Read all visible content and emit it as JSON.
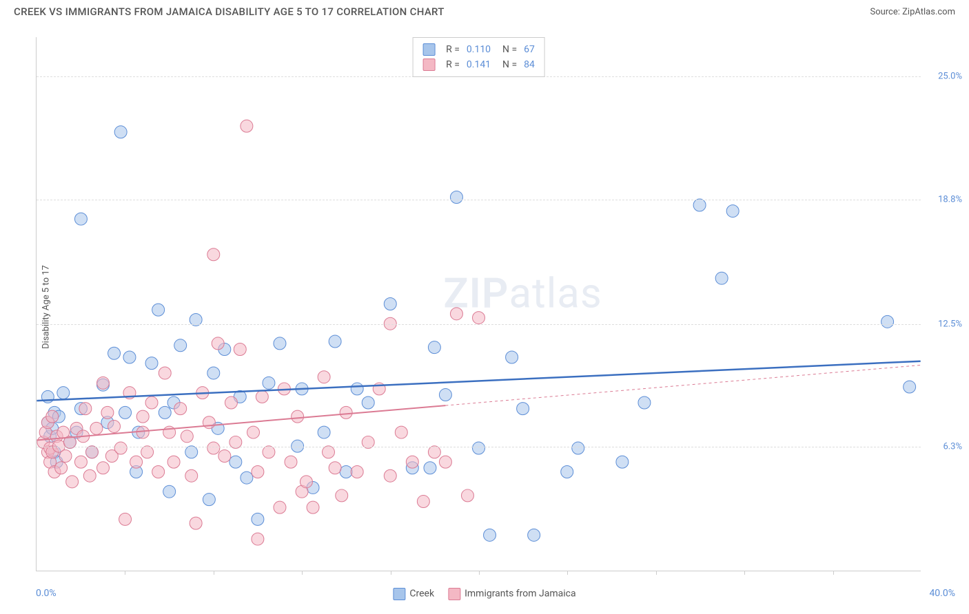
{
  "header": {
    "title": "CREEK VS IMMIGRANTS FROM JAMAICA DISABILITY AGE 5 TO 17 CORRELATION CHART",
    "source": "Source: ZipAtlas.com"
  },
  "chart": {
    "type": "scatter",
    "ylabel": "Disability Age 5 to 17",
    "background_color": "#ffffff",
    "grid_color": "#dddddd",
    "axis_color": "#cccccc",
    "xlim": [
      0,
      40
    ],
    "ylim": [
      0,
      27
    ],
    "yticks": [
      {
        "pos": 6.3,
        "label": "6.3%"
      },
      {
        "pos": 12.5,
        "label": "12.5%"
      },
      {
        "pos": 18.8,
        "label": "18.8%"
      },
      {
        "pos": 25.0,
        "label": "25.0%"
      }
    ],
    "xticks_pos": [
      4,
      8,
      12,
      16,
      20,
      24,
      28,
      32,
      36
    ],
    "xaxis_min_label": "0.0%",
    "xaxis_max_label": "40.0%",
    "watermark": {
      "prefix": "ZIP",
      "suffix": "atlas"
    },
    "marker_radius": 9,
    "marker_opacity": 0.55,
    "series": [
      {
        "name": "Creek",
        "fill": "#a7c5eb",
        "stroke": "#5b8dd6",
        "R": "0.110",
        "N": "67",
        "trend": {
          "x1": 0,
          "y1": 8.6,
          "x2": 40,
          "y2": 10.6,
          "solid_until": 40,
          "color": "#3b6fc0",
          "width": 2.5
        },
        "points": [
          [
            0.5,
            8.8
          ],
          [
            0.5,
            7.5
          ],
          [
            0.6,
            6.8
          ],
          [
            0.7,
            7.2
          ],
          [
            0.8,
            6.0
          ],
          [
            0.8,
            8.0
          ],
          [
            0.9,
            5.5
          ],
          [
            1.0,
            7.8
          ],
          [
            1.2,
            9.0
          ],
          [
            1.5,
            6.5
          ],
          [
            1.8,
            7.0
          ],
          [
            2.0,
            17.8
          ],
          [
            2.0,
            8.2
          ],
          [
            2.5,
            6.0
          ],
          [
            3.0,
            9.4
          ],
          [
            3.2,
            7.5
          ],
          [
            3.5,
            11.0
          ],
          [
            3.8,
            22.2
          ],
          [
            4.0,
            8.0
          ],
          [
            4.2,
            10.8
          ],
          [
            4.5,
            5.0
          ],
          [
            4.6,
            7.0
          ],
          [
            5.2,
            10.5
          ],
          [
            5.5,
            13.2
          ],
          [
            5.8,
            8.0
          ],
          [
            6.0,
            4.0
          ],
          [
            6.2,
            8.5
          ],
          [
            6.5,
            11.4
          ],
          [
            7.0,
            6.0
          ],
          [
            7.2,
            12.7
          ],
          [
            7.8,
            3.6
          ],
          [
            8.0,
            10.0
          ],
          [
            8.2,
            7.2
          ],
          [
            8.5,
            11.2
          ],
          [
            9.0,
            5.5
          ],
          [
            9.2,
            8.8
          ],
          [
            9.5,
            4.7
          ],
          [
            10.0,
            2.6
          ],
          [
            10.5,
            9.5
          ],
          [
            11.0,
            11.5
          ],
          [
            11.8,
            6.3
          ],
          [
            12.0,
            9.2
          ],
          [
            12.5,
            4.2
          ],
          [
            13.0,
            7.0
          ],
          [
            13.5,
            11.6
          ],
          [
            14.0,
            5.0
          ],
          [
            14.5,
            9.2
          ],
          [
            15.0,
            8.5
          ],
          [
            16.0,
            13.5
          ],
          [
            17.0,
            5.2
          ],
          [
            17.8,
            5.2
          ],
          [
            18.0,
            11.3
          ],
          [
            18.5,
            8.9
          ],
          [
            19.0,
            18.9
          ],
          [
            20.0,
            6.2
          ],
          [
            20.5,
            1.8
          ],
          [
            21.5,
            10.8
          ],
          [
            22.0,
            8.2
          ],
          [
            22.5,
            1.8
          ],
          [
            24.0,
            5.0
          ],
          [
            24.5,
            6.2
          ],
          [
            26.5,
            5.5
          ],
          [
            27.5,
            8.5
          ],
          [
            30.0,
            18.5
          ],
          [
            31.0,
            14.8
          ],
          [
            31.5,
            18.2
          ],
          [
            38.5,
            12.6
          ],
          [
            39.5,
            9.3
          ]
        ]
      },
      {
        "name": "Immigrants from Jamaica",
        "fill": "#f4b8c4",
        "stroke": "#db7a93",
        "R": "0.141",
        "N": "84",
        "trend": {
          "x1": 0,
          "y1": 6.6,
          "x2": 40,
          "y2": 10.4,
          "solid_until": 18.5,
          "color": "#db7a93",
          "width": 2
        },
        "points": [
          [
            0.3,
            6.5
          ],
          [
            0.4,
            7.0
          ],
          [
            0.5,
            6.0
          ],
          [
            0.5,
            7.5
          ],
          [
            0.6,
            6.2
          ],
          [
            0.6,
            5.5
          ],
          [
            0.7,
            7.8
          ],
          [
            0.7,
            6.0
          ],
          [
            0.8,
            5.0
          ],
          [
            0.9,
            6.8
          ],
          [
            1.0,
            6.3
          ],
          [
            1.1,
            5.2
          ],
          [
            1.2,
            7.0
          ],
          [
            1.3,
            5.8
          ],
          [
            1.5,
            6.5
          ],
          [
            1.6,
            4.5
          ],
          [
            1.8,
            7.2
          ],
          [
            2.0,
            5.5
          ],
          [
            2.1,
            6.8
          ],
          [
            2.2,
            8.2
          ],
          [
            2.4,
            4.8
          ],
          [
            2.5,
            6.0
          ],
          [
            2.7,
            7.2
          ],
          [
            3.0,
            5.2
          ],
          [
            3.0,
            9.5
          ],
          [
            3.2,
            8.0
          ],
          [
            3.4,
            5.8
          ],
          [
            3.5,
            7.3
          ],
          [
            3.8,
            6.2
          ],
          [
            4.0,
            2.6
          ],
          [
            4.2,
            9.0
          ],
          [
            4.5,
            5.5
          ],
          [
            4.8,
            7.8
          ],
          [
            4.8,
            7.0
          ],
          [
            5.0,
            6.0
          ],
          [
            5.2,
            8.5
          ],
          [
            5.5,
            5.0
          ],
          [
            5.8,
            10.0
          ],
          [
            6.0,
            7.0
          ],
          [
            6.2,
            5.5
          ],
          [
            6.5,
            8.2
          ],
          [
            6.8,
            6.8
          ],
          [
            7.0,
            4.8
          ],
          [
            7.2,
            2.4
          ],
          [
            7.5,
            9.0
          ],
          [
            7.8,
            7.5
          ],
          [
            8.0,
            6.2
          ],
          [
            8.0,
            16.0
          ],
          [
            8.2,
            11.5
          ],
          [
            8.5,
            5.8
          ],
          [
            8.8,
            8.5
          ],
          [
            9.0,
            6.5
          ],
          [
            9.2,
            11.2
          ],
          [
            9.5,
            22.5
          ],
          [
            9.8,
            7.0
          ],
          [
            10.0,
            5.0
          ],
          [
            10.0,
            1.6
          ],
          [
            10.2,
            8.8
          ],
          [
            10.5,
            6.0
          ],
          [
            11.0,
            3.2
          ],
          [
            11.2,
            9.2
          ],
          [
            11.5,
            5.5
          ],
          [
            11.8,
            7.8
          ],
          [
            12.0,
            4.0
          ],
          [
            12.2,
            4.5
          ],
          [
            12.5,
            3.2
          ],
          [
            13.0,
            9.8
          ],
          [
            13.2,
            6.0
          ],
          [
            13.5,
            5.2
          ],
          [
            13.8,
            3.8
          ],
          [
            14.0,
            8.0
          ],
          [
            14.5,
            5.0
          ],
          [
            15.0,
            6.5
          ],
          [
            15.5,
            9.2
          ],
          [
            16.0,
            4.8
          ],
          [
            16.0,
            12.5
          ],
          [
            16.5,
            7.0
          ],
          [
            17.0,
            5.5
          ],
          [
            17.5,
            3.5
          ],
          [
            18.0,
            6.0
          ],
          [
            18.5,
            5.5
          ],
          [
            19.0,
            13.0
          ],
          [
            19.5,
            3.8
          ],
          [
            20.0,
            12.8
          ]
        ]
      }
    ],
    "bottom_legend": [
      {
        "label": "Creek",
        "fill": "#a7c5eb",
        "stroke": "#5b8dd6"
      },
      {
        "label": "Immigrants from Jamaica",
        "fill": "#f4b8c4",
        "stroke": "#db7a93"
      }
    ]
  }
}
